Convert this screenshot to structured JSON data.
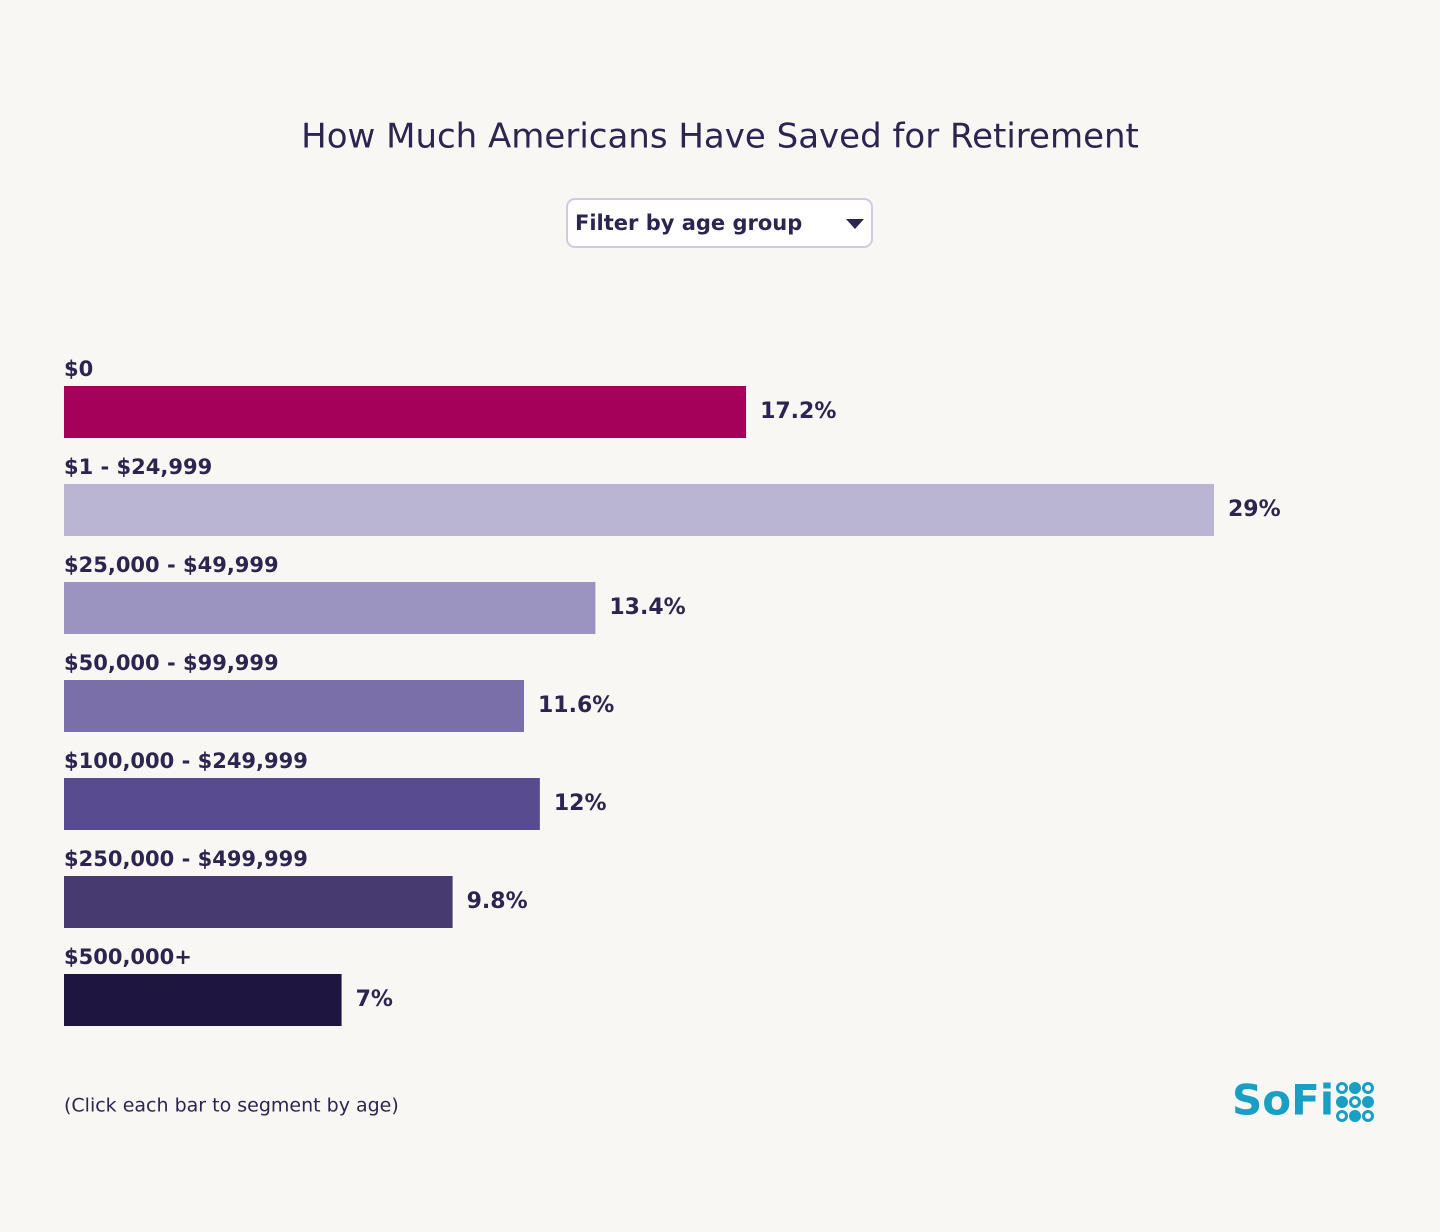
{
  "chart_data": {
    "type": "bar",
    "orientation": "horizontal",
    "title": "How Much Americans Have Saved for Retirement",
    "filter_label": "Filter by age group",
    "categories": [
      "$0",
      "$1 - $24,999",
      "$25,000 - $49,999",
      "$50,000 - $99,999",
      "$100,000 - $249,999",
      "$250,000 - $499,999",
      "$500,000+"
    ],
    "values": [
      17.2,
      29,
      13.4,
      11.6,
      12,
      9.8,
      7
    ],
    "value_labels": [
      "17.2%",
      "29%",
      "13.4%",
      "11.6%",
      "12%",
      "9.8%",
      "7%"
    ],
    "colors": [
      "#a5005a",
      "#bbb5d4",
      "#9c94c0",
      "#7a6fa8",
      "#594b8f",
      "#463a71",
      "#1e1640"
    ],
    "note": "(Click each bar to segment by age)",
    "logo": "SoFi"
  }
}
